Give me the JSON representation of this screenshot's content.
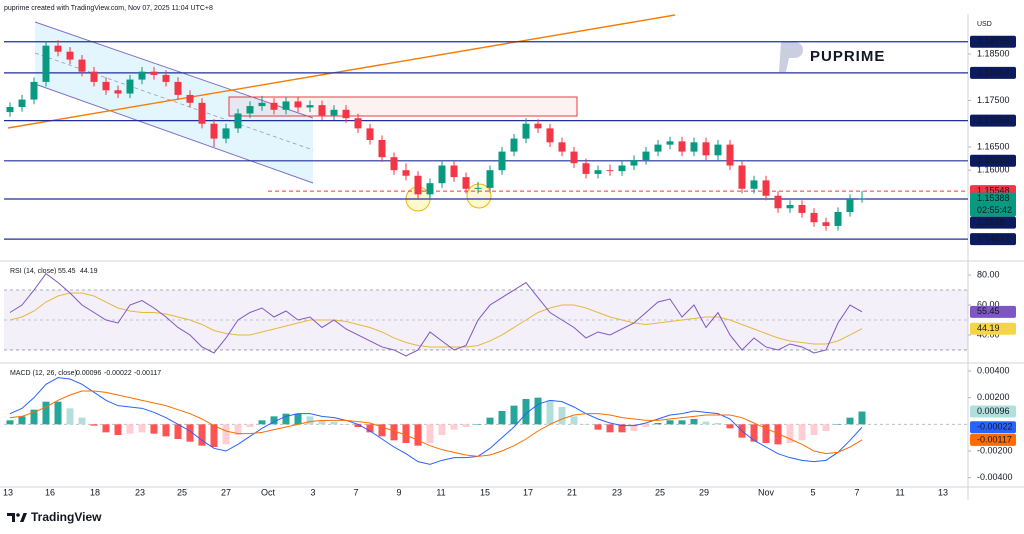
{
  "header": "puprime created with TradingView.com, Nov 07, 2025 11:04 UTC+8",
  "footer": {
    "logo": "TradingView"
  },
  "chart_data": {
    "type": "candlestick",
    "currency": "USD",
    "watermark": "PUPRIME",
    "x_labels": [
      "13",
      "16",
      "18",
      "23",
      "25",
      "27",
      "Oct",
      "3",
      "7",
      "9",
      "11",
      "15",
      "17",
      "21",
      "23",
      "25",
      "29",
      "Nov",
      "5",
      "7",
      "11",
      "13"
    ],
    "up_color": "#089981",
    "down_color": "#f23645",
    "ylim": [
      1.1411,
      1.1934
    ],
    "yticks": [
      {
        "value": 1.185,
        "label": "1.18500"
      },
      {
        "value": 1.175,
        "label": "1.17500"
      },
      {
        "value": 1.165,
        "label": "1.16500"
      },
      {
        "value": 1.16,
        "label": "1.16000"
      }
    ],
    "levels": [
      1.18765,
      1.18094,
      1.17066,
      1.16202,
      1.1538,
      1.14517
    ],
    "level_color": "#1f2f9c",
    "dashed_level": 1.15548,
    "dashed_color": "#f23645",
    "countdown": "02:55:42",
    "ohlc": [
      [
        1.1725,
        1.1746,
        1.1715,
        1.1736
      ],
      [
        1.1736,
        1.1762,
        1.1726,
        1.1752
      ],
      [
        1.1752,
        1.18,
        1.1742,
        1.179
      ],
      [
        1.179,
        1.1878,
        1.178,
        1.1868
      ],
      [
        1.1868,
        1.188,
        1.1845,
        1.1855
      ],
      [
        1.1855,
        1.1865,
        1.1828,
        1.1838
      ],
      [
        1.1838,
        1.1848,
        1.1802,
        1.1812
      ],
      [
        1.1812,
        1.1822,
        1.178,
        1.179
      ],
      [
        1.179,
        1.18,
        1.1762,
        1.1772
      ],
      [
        1.1772,
        1.1782,
        1.1755,
        1.1765
      ],
      [
        1.1765,
        1.1805,
        1.1755,
        1.1795
      ],
      [
        1.1795,
        1.1822,
        1.1785,
        1.1812
      ],
      [
        1.1812,
        1.1822,
        1.1795,
        1.1805
      ],
      [
        1.1805,
        1.1815,
        1.178,
        1.179
      ],
      [
        1.179,
        1.18,
        1.1752,
        1.1762
      ],
      [
        1.1762,
        1.1772,
        1.1735,
        1.1745
      ],
      [
        1.1745,
        1.1755,
        1.169,
        1.17
      ],
      [
        1.17,
        1.171,
        1.165,
        1.1668
      ],
      [
        1.1668,
        1.17,
        1.1658,
        1.169
      ],
      [
        1.169,
        1.1732,
        1.168,
        1.1722
      ],
      [
        1.1722,
        1.1748,
        1.1712,
        1.1738
      ],
      [
        1.1738,
        1.176,
        1.1728,
        1.1745
      ],
      [
        1.1745,
        1.1755,
        1.172,
        1.173
      ],
      [
        1.173,
        1.1758,
        1.172,
        1.1748
      ],
      [
        1.1748,
        1.1758,
        1.1725,
        1.1735
      ],
      [
        1.1735,
        1.175,
        1.1725,
        1.174
      ],
      [
        1.174,
        1.175,
        1.1708,
        1.1718
      ],
      [
        1.1718,
        1.174,
        1.1708,
        1.173
      ],
      [
        1.173,
        1.174,
        1.1702,
        1.1712
      ],
      [
        1.1712,
        1.1722,
        1.168,
        1.169
      ],
      [
        1.169,
        1.17,
        1.1655,
        1.1665
      ],
      [
        1.1665,
        1.1675,
        1.1618,
        1.1628
      ],
      [
        1.1628,
        1.1638,
        1.159,
        1.16
      ],
      [
        1.16,
        1.1615,
        1.1578,
        1.1588
      ],
      [
        1.1588,
        1.1598,
        1.154,
        1.1548
      ],
      [
        1.1548,
        1.1582,
        1.1538,
        1.1572
      ],
      [
        1.1572,
        1.162,
        1.1562,
        1.161
      ],
      [
        1.161,
        1.162,
        1.1575,
        1.1585
      ],
      [
        1.1585,
        1.1595,
        1.155,
        1.156
      ],
      [
        1.156,
        1.1575,
        1.155,
        1.1562
      ],
      [
        1.1562,
        1.161,
        1.1552,
        1.16
      ],
      [
        1.16,
        1.165,
        1.159,
        1.164
      ],
      [
        1.164,
        1.1678,
        1.163,
        1.1668
      ],
      [
        1.1668,
        1.1712,
        1.1658,
        1.17
      ],
      [
        1.17,
        1.171,
        1.168,
        1.169
      ],
      [
        1.169,
        1.17,
        1.165,
        1.166
      ],
      [
        1.166,
        1.167,
        1.163,
        1.164
      ],
      [
        1.164,
        1.165,
        1.1605,
        1.1615
      ],
      [
        1.1615,
        1.1625,
        1.1582,
        1.1592
      ],
      [
        1.1592,
        1.161,
        1.1582,
        1.16
      ],
      [
        1.16,
        1.1612,
        1.1588,
        1.1598
      ],
      [
        1.1598,
        1.162,
        1.1588,
        1.161
      ],
      [
        1.161,
        1.1632,
        1.16,
        1.1622
      ],
      [
        1.1622,
        1.165,
        1.1612,
        1.164
      ],
      [
        1.164,
        1.1665,
        1.163,
        1.1655
      ],
      [
        1.1655,
        1.1672,
        1.1645,
        1.1662
      ],
      [
        1.1662,
        1.1672,
        1.163,
        1.164
      ],
      [
        1.164,
        1.167,
        1.163,
        1.166
      ],
      [
        1.166,
        1.167,
        1.1622,
        1.1632
      ],
      [
        1.1632,
        1.1665,
        1.1622,
        1.1655
      ],
      [
        1.1655,
        1.1665,
        1.16,
        1.161
      ],
      [
        1.161,
        1.162,
        1.155,
        1.156
      ],
      [
        1.156,
        1.1588,
        1.155,
        1.1578
      ],
      [
        1.1578,
        1.1588,
        1.1535,
        1.1545
      ],
      [
        1.1545,
        1.1555,
        1.1508,
        1.1518
      ],
      [
        1.1518,
        1.1535,
        1.1508,
        1.1525
      ],
      [
        1.1525,
        1.1535,
        1.1498,
        1.1508
      ],
      [
        1.1508,
        1.1518,
        1.1478,
        1.1488
      ],
      [
        1.1488,
        1.1498,
        1.147,
        1.148
      ],
      [
        1.148,
        1.152,
        1.147,
        1.151
      ],
      [
        1.151,
        1.1548,
        1.15,
        1.1538
      ],
      [
        1.1538,
        1.1555,
        1.153,
        1.15388
      ]
    ],
    "rsi": {
      "title": "RSI (14, close)",
      "color": "#7e57c2",
      "ma_color": "#e6b93c",
      "ylim": [
        23.3,
        84.7
      ],
      "yticks": [
        {
          "value": 80,
          "label": "80.00"
        },
        {
          "value": 60,
          "label": "60.00"
        },
        {
          "value": 40,
          "label": "40.00"
        }
      ],
      "bands": [
        70,
        30
      ],
      "mid": 50,
      "values": [
        55,
        60,
        70,
        81,
        75,
        68,
        60,
        55,
        50,
        48,
        60,
        63,
        58,
        52,
        45,
        40,
        32,
        28,
        38,
        50,
        55,
        58,
        52,
        56,
        50,
        52,
        45,
        50,
        44,
        40,
        36,
        32,
        30,
        26,
        30,
        42,
        36,
        30,
        33,
        50,
        60,
        65,
        70,
        75,
        65,
        55,
        50,
        45,
        38,
        42,
        40,
        44,
        48,
        55,
        62,
        64,
        52,
        60,
        45,
        55,
        40,
        30,
        38,
        32,
        30,
        34,
        32,
        28,
        30,
        48,
        60,
        55.45
      ],
      "ma": [
        50,
        52,
        56,
        62,
        66,
        68,
        68,
        66,
        62,
        58,
        56,
        55,
        55,
        54,
        52,
        50,
        47,
        43,
        41,
        40,
        40,
        42,
        44,
        46,
        48,
        50,
        50,
        50,
        49,
        47,
        45,
        42,
        38,
        35,
        33,
        32,
        32,
        32,
        32,
        33,
        36,
        40,
        45,
        50,
        55,
        58,
        60,
        60,
        58,
        55,
        52,
        50,
        48,
        47,
        48,
        49,
        50,
        51,
        52,
        52,
        50,
        47,
        44,
        41,
        38,
        36,
        35,
        34,
        34,
        36,
        40,
        44.19
      ]
    },
    "macd": {
      "title": "MACD (12, 26, close)",
      "macd_color": "#2962ff",
      "signal_color": "#ff6d00",
      "hist_colors": {
        "rise_above": "#26a69a",
        "fall_above": "#b2dfdb",
        "fall_below": "#ff5252",
        "rise_below": "#ffcdd2"
      },
      "ylim": [
        -0.0047,
        0.0046
      ],
      "yticks": [
        {
          "value": 0.004,
          "label": "0.00400"
        },
        {
          "value": 0.002,
          "label": "0.00200"
        },
        {
          "value": -0.002,
          "label": "-0.00200"
        },
        {
          "value": -0.004,
          "label": "-0.00400"
        }
      ],
      "macd": [
        0.0008,
        0.0012,
        0.002,
        0.003,
        0.0035,
        0.0034,
        0.003,
        0.0024,
        0.0018,
        0.0014,
        0.0013,
        0.0012,
        0.0009,
        0.0005,
        0,
        -0.0005,
        -0.0012,
        -0.0018,
        -0.002,
        -0.0015,
        -0.0009,
        -0.0003,
        0.0002,
        0.0006,
        0.0008,
        0.0008,
        0.0006,
        0.0005,
        0.0003,
        0,
        -0.0005,
        -0.0011,
        -0.0017,
        -0.0022,
        -0.0028,
        -0.003,
        -0.0027,
        -0.0025,
        -0.0025,
        -0.0024,
        -0.0018,
        -0.001,
        -0.0002,
        0.0008,
        0.0015,
        0.0018,
        0.0017,
        0.0013,
        0.0008,
        0.0004,
        0.0001,
        -0.0001,
        -0.0001,
        0.0001,
        0.0004,
        0.0007,
        0.0008,
        0.001,
        0.0009,
        0.0008,
        0.0004,
        -0.0005,
        -0.0012,
        -0.0017,
        -0.0022,
        -0.0025,
        -0.0027,
        -0.0028,
        -0.0027,
        -0.0021,
        -0.0012,
        -0.00022
      ],
      "signal": [
        0.0005,
        0.0006,
        0.0009,
        0.0013,
        0.0018,
        0.0022,
        0.0025,
        0.0025,
        0.0024,
        0.0022,
        0.002,
        0.0018,
        0.0016,
        0.0014,
        0.0011,
        0.0008,
        0.0004,
        -0.0001,
        -0.0005,
        -0.0007,
        -0.0007,
        -0.0006,
        -0.0004,
        -0.0002,
        0,
        0.0002,
        0.0003,
        0.0003,
        0.0003,
        0.0002,
        0.0001,
        -0.0002,
        -0.0005,
        -0.0008,
        -0.0012,
        -0.0016,
        -0.0019,
        -0.0021,
        -0.0023,
        -0.0024,
        -0.0023,
        -0.002,
        -0.0016,
        -0.0011,
        -0.0005,
        0,
        0.0004,
        0.0007,
        0.0008,
        0.0008,
        0.0007,
        0.0005,
        0.0004,
        0.0003,
        0.0003,
        0.0004,
        0.0005,
        0.0006,
        0.0007,
        0.0007,
        0.0007,
        0.0005,
        0.0001,
        -0.0003,
        -0.0007,
        -0.0011,
        -0.0015,
        -0.002,
        -0.0022,
        -0.0021,
        -0.0017,
        -0.00117
      ],
      "hist": [
        0.0003,
        0.0006,
        0.0011,
        0.0017,
        0.0017,
        0.0012,
        0.0005,
        -0.0001,
        -0.0006,
        -0.0008,
        -0.0007,
        -0.0006,
        -0.0007,
        -0.0009,
        -0.0011,
        -0.0013,
        -0.0016,
        -0.0017,
        -0.0015,
        -0.0008,
        -0.0002,
        0.0003,
        0.0006,
        0.0008,
        0.0008,
        0.0006,
        0.0003,
        0.0002,
        0,
        -0.0002,
        -0.0006,
        -0.0009,
        -0.0012,
        -0.0014,
        -0.0016,
        -0.0014,
        -0.0008,
        -0.0004,
        -0.0002,
        0,
        0.0005,
        0.001,
        0.0014,
        0.0019,
        0.002,
        0.0018,
        0.0013,
        0.0006,
        0,
        -0.0004,
        -0.0006,
        -0.0006,
        -0.0005,
        -0.0002,
        0.0001,
        0.0003,
        0.0003,
        0.0004,
        0.0002,
        0.0001,
        -0.0003,
        -0.001,
        -0.0013,
        -0.0014,
        -0.0015,
        -0.0014,
        -0.0012,
        -0.0008,
        -0.0005,
        0,
        0.0005,
        0.00096
      ]
    }
  }
}
